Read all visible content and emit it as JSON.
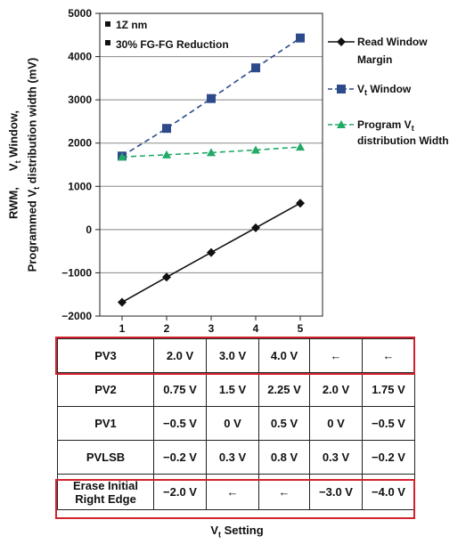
{
  "chart_data": {
    "type": "line",
    "x": [
      1,
      2,
      3,
      4,
      5
    ],
    "xlabel_main": "V",
    "xlabel_sub": "t",
    "xlabel_rest": " Setting",
    "ylabel_line1": "RWM,     V",
    "ylabel_line1_sub": "t",
    "ylabel_line1_rest": " Window,",
    "ylabel_line2": "Programmed V",
    "ylabel_line2_sub": "t",
    "ylabel_line2_rest": " distribution width (mV)",
    "ylim": [
      -2000,
      5000
    ],
    "yticks": [
      -2000,
      -1000,
      0,
      1000,
      2000,
      3000,
      4000,
      5000
    ],
    "ytick_labels": [
      "−2000",
      "−1000",
      "0",
      "1000",
      "2000",
      "3000",
      "4000",
      "5000"
    ],
    "xticks": [
      1,
      2,
      3,
      4,
      5
    ],
    "grid": "horizontal",
    "annotations": [
      "1Z nm",
      "30% FG-FG Reduction"
    ],
    "legend_position": "right",
    "series": [
      {
        "name": "Read Window Margin",
        "legend_lines": [
          "Read Window",
          "Margin"
        ],
        "color": "#111111",
        "marker": "diamond",
        "line": "solid",
        "values": [
          -1680,
          -1100,
          -530,
          40,
          610
        ]
      },
      {
        "name": "Vt Window",
        "legend_main": "V",
        "legend_sub": "t",
        "legend_rest": " Window",
        "color": "#2d4a8a",
        "marker": "square",
        "line": "dashed",
        "values": [
          1700,
          2340,
          3030,
          3740,
          4430
        ]
      },
      {
        "name": "Program Vt distribution Width",
        "legend_lines": [
          "Program V",
          "distribution Width"
        ],
        "legend_sub": "t",
        "color": "#22aa66",
        "marker": "triangle",
        "line": "dashed",
        "values": [
          1680,
          1730,
          1780,
          1840,
          1910
        ]
      }
    ]
  },
  "table": {
    "rows": [
      {
        "label": "PV3",
        "cells": [
          "2.0 V",
          "3.0 V",
          "4.0 V",
          "←",
          "←"
        ]
      },
      {
        "label": "PV2",
        "cells": [
          "0.75 V",
          "1.5 V",
          "2.25 V",
          "2.0 V",
          "1.75 V"
        ]
      },
      {
        "label": "PV1",
        "cells": [
          "−0.5 V",
          "0 V",
          "0.5 V",
          "0 V",
          "−0.5 V"
        ]
      },
      {
        "label": "PVLSB",
        "cells": [
          "−0.2 V",
          "0.3 V",
          "0.8 V",
          "0.3 V",
          "−0.2 V"
        ]
      },
      {
        "label": "Erase Initial Right Edge",
        "label_lines": [
          "Erase Initial",
          "Right Edge"
        ],
        "cells": [
          "−2.0 V",
          "←",
          "←",
          "−3.0 V",
          "−4.0 V"
        ]
      }
    ],
    "highlight_color": "#d2222d"
  }
}
